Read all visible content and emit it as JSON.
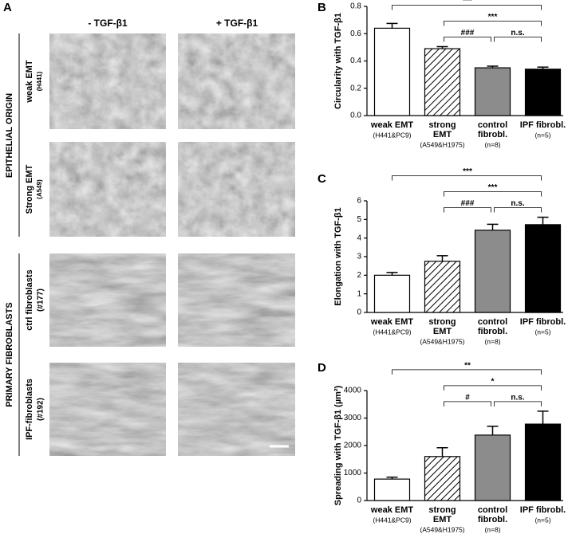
{
  "panel_a": {
    "letter": "A",
    "columns": [
      "- TGF-β1",
      "+ TGF-β1"
    ],
    "groups": [
      "EPITHELIAL ORIGIN",
      "PRIMARY FIBROBLASTS"
    ],
    "rows": [
      {
        "label": "weak EMT",
        "sublabel": "(H441)"
      },
      {
        "label": "Strong EMT",
        "sublabel": "(A549)"
      },
      {
        "label": "ctrl fibroblasts",
        "sublabel": "(#177)"
      },
      {
        "label": "IPF-fibroblasts",
        "sublabel": "(#192)"
      }
    ]
  },
  "chart_data": [
    {
      "type": "bar",
      "letter": "B",
      "y_label": "Circularity with TGF-β1",
      "categories": [
        "weak EMT",
        "strong EMT",
        "control fibrobl.",
        "IPF fibrobl."
      ],
      "sublabels": [
        "(H441&PC9)",
        "(A549&H1975)",
        "(n=8)",
        "(n=5)"
      ],
      "values": [
        0.64,
        0.49,
        0.35,
        0.34
      ],
      "errors": [
        0.035,
        0.015,
        0.012,
        0.015
      ],
      "fills": [
        "#ffffff",
        "hatch",
        "#8c8c8c",
        "#000000"
      ],
      "ylim": [
        0,
        0.8
      ],
      "yticks": [
        {
          "value": 0,
          "label": "0.0"
        },
        0.2,
        0.4,
        0.6,
        0.8
      ],
      "brackets": [
        {
          "from": 0,
          "to": 3,
          "label": "***"
        },
        {
          "from": 1,
          "to": 3,
          "label": "***"
        },
        {
          "from": 1,
          "to": 2,
          "label": "###"
        },
        {
          "from": 2,
          "to": 3,
          "label": "n.s."
        }
      ]
    },
    {
      "type": "bar",
      "letter": "C",
      "y_label": "Elongation with TGF-β1",
      "categories": [
        "weak EMT",
        "strong EMT",
        "control fibrobl.",
        "IPF fibrobl."
      ],
      "sublabels": [
        "(H441&PC9)",
        "(A549&H1975)",
        "(n=8)",
        "(n=5)"
      ],
      "values": [
        2.0,
        2.75,
        4.42,
        4.72
      ],
      "errors": [
        0.15,
        0.3,
        0.32,
        0.4
      ],
      "fills": [
        "#ffffff",
        "hatch",
        "#8c8c8c",
        "#000000"
      ],
      "ylim": [
        0,
        6
      ],
      "yticks": [
        0,
        1,
        2,
        3,
        4,
        5,
        6
      ],
      "brackets": [
        {
          "from": 0,
          "to": 3,
          "label": "***"
        },
        {
          "from": 1,
          "to": 3,
          "label": "***"
        },
        {
          "from": 1,
          "to": 2,
          "label": "###"
        },
        {
          "from": 2,
          "to": 3,
          "label": "n.s."
        }
      ]
    },
    {
      "type": "bar",
      "letter": "D",
      "y_label": "Spreading with TGF-β1 (µm²)",
      "categories": [
        "weak EMT",
        "strong EMT",
        "control fibrobl.",
        "IPF fibrobl."
      ],
      "sublabels": [
        "(H441&PC9)",
        "(A549&H1975)",
        "(n=8)",
        "(n=5)"
      ],
      "values": [
        780,
        1600,
        2380,
        2780
      ],
      "errors": [
        70,
        320,
        320,
        470
      ],
      "fills": [
        "#ffffff",
        "hatch",
        "#8c8c8c",
        "#000000"
      ],
      "ylim": [
        0,
        4000
      ],
      "yticks": [
        0,
        1000,
        2000,
        3000,
        4000
      ],
      "brackets": [
        {
          "from": 0,
          "to": 3,
          "label": "**"
        },
        {
          "from": 1,
          "to": 3,
          "label": "*"
        },
        {
          "from": 1,
          "to": 2,
          "label": "#"
        },
        {
          "from": 2,
          "to": 3,
          "label": "n.s."
        }
      ]
    }
  ]
}
